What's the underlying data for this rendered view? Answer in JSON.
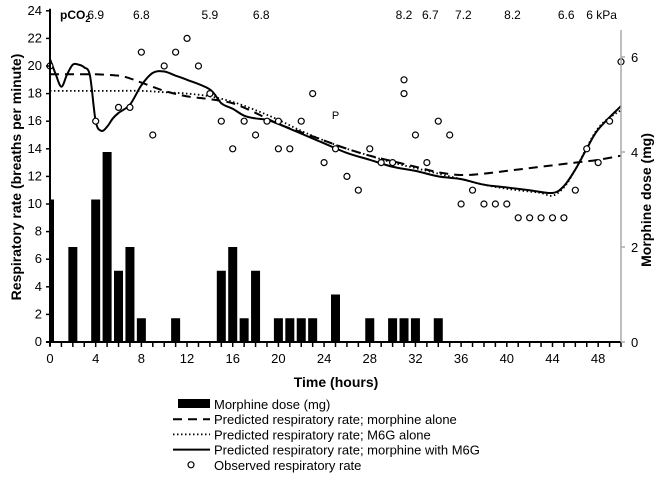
{
  "chart_data": {
    "type": "bar+line+scatter",
    "title": "",
    "xlabel": "Time (hours)",
    "ylabel": "Respiratory rate (breaths per minute)",
    "y2label": "Morphine dose (mg)",
    "xlim": [
      0,
      50
    ],
    "ylim": [
      0,
      24
    ],
    "y2lim": [
      0,
      7
    ],
    "x_ticks": [
      0,
      4,
      8,
      12,
      16,
      20,
      24,
      28,
      32,
      36,
      40,
      44,
      48
    ],
    "y_ticks": [
      0,
      2,
      4,
      6,
      8,
      10,
      12,
      14,
      16,
      18,
      20,
      22,
      24
    ],
    "y2_ticks": [
      0,
      2,
      4,
      6
    ],
    "grid": false,
    "pco2": {
      "prefix": "pCO",
      "prefix_sub": "2",
      "unit": "kPa",
      "values": [
        {
          "x": 4,
          "label": "6.9"
        },
        {
          "x": 8,
          "label": "6.8"
        },
        {
          "x": 14,
          "label": "5.9"
        },
        {
          "x": 18.5,
          "label": "6.8"
        },
        {
          "x": 31,
          "label": "8.2"
        },
        {
          "x": 33.3,
          "label": "6.7"
        },
        {
          "x": 36.2,
          "label": "7.2"
        },
        {
          "x": 40.5,
          "label": "8.2"
        },
        {
          "x": 45.2,
          "label": "6.6"
        },
        {
          "x": 48.3,
          "label": "6"
        }
      ]
    },
    "annotations": [
      {
        "x": 25,
        "y": 4.7,
        "text": "P",
        "axis": "y2"
      }
    ],
    "morphine_dose": {
      "name": "Morphine dose (mg)",
      "axis": "y2",
      "x": [
        0,
        2,
        4,
        5,
        6,
        7,
        8,
        11,
        15,
        16,
        17,
        18,
        20,
        21,
        22,
        23,
        25,
        28,
        30,
        31,
        32,
        34
      ],
      "values": [
        3,
        2,
        3,
        4,
        1.5,
        2,
        0.5,
        0.5,
        1.5,
        2,
        0.5,
        1.5,
        0.5,
        0.5,
        0.5,
        0.5,
        1,
        0.5,
        0.5,
        0.5,
        0.5,
        0.5
      ]
    },
    "series": [
      {
        "name": "Predicted respiratory rate; morphine alone",
        "style": "dashed",
        "x": [
          0,
          1,
          3,
          4,
          6,
          7,
          8,
          10,
          12,
          14,
          16,
          18,
          20,
          22,
          24,
          26,
          28,
          30,
          32,
          34,
          36,
          38,
          40,
          42,
          44,
          46,
          48,
          50
        ],
        "values": [
          19.4,
          19.4,
          19.4,
          19.4,
          19.3,
          19.1,
          18.8,
          18.2,
          17.8,
          17.6,
          17.3,
          16.6,
          15.8,
          15.2,
          14.6,
          14.0,
          13.5,
          13.1,
          12.7,
          12.3,
          12.1,
          12.2,
          12.4,
          12.6,
          12.8,
          13.0,
          13.2,
          13.5
        ]
      },
      {
        "name": "Predicted respiratory rate; M6G alone",
        "style": "dotted",
        "x": [
          0,
          2,
          4,
          6,
          8,
          10,
          12,
          14,
          16,
          18,
          20,
          22,
          24,
          26,
          28,
          30,
          32,
          34,
          36,
          38,
          40,
          42,
          43,
          44,
          45,
          46,
          48,
          50
        ],
        "values": [
          18.2,
          18.2,
          18.2,
          18.2,
          18.2,
          18.1,
          18.0,
          17.8,
          17.4,
          16.8,
          16.1,
          15.3,
          14.6,
          14.0,
          13.5,
          13.0,
          12.6,
          12.2,
          11.8,
          11.4,
          11.1,
          10.9,
          10.8,
          10.6,
          11.2,
          12.5,
          15.5,
          16.8
        ]
      },
      {
        "name": "Predicted respiratory rate; morphine with M6G",
        "style": "solid",
        "x": [
          0,
          0.5,
          1,
          1.5,
          2,
          2.5,
          3,
          3.5,
          4,
          4.5,
          5,
          5.5,
          6,
          7,
          8,
          9,
          10,
          11,
          12,
          14,
          15,
          16,
          17,
          18,
          19,
          20,
          22,
          24,
          26,
          28,
          30,
          32,
          34,
          36,
          38,
          40,
          42,
          44,
          45,
          46,
          47,
          48,
          50
        ],
        "values": [
          20.5,
          19.4,
          18.5,
          19.4,
          20.1,
          20.1,
          19.9,
          19.3,
          16.0,
          15.3,
          15.6,
          16.2,
          16.6,
          17.2,
          18.6,
          19.5,
          19.6,
          19.3,
          19.0,
          18.3,
          17.3,
          16.9,
          16.4,
          16.2,
          16.1,
          15.8,
          15.1,
          14.4,
          13.7,
          13.2,
          12.7,
          12.4,
          12.0,
          11.8,
          11.4,
          11.2,
          11.0,
          10.8,
          11.3,
          12.5,
          14.0,
          15.4,
          17.1
        ]
      }
    ],
    "observed": {
      "name": "Observed respiratory rate",
      "x": [
        0,
        4,
        6,
        7,
        8,
        9,
        10,
        11,
        12,
        13,
        14,
        15,
        16,
        17,
        18,
        19,
        20,
        20,
        21,
        22,
        23,
        24,
        25,
        26,
        27,
        28,
        29,
        30,
        31,
        31,
        32,
        33,
        34,
        35,
        36,
        37,
        38,
        39,
        40,
        41,
        42,
        43,
        44,
        45,
        46,
        47,
        48,
        49
      ],
      "values": [
        20,
        16,
        17,
        17,
        21,
        15,
        20,
        21,
        22,
        20,
        18,
        16,
        14,
        16,
        15,
        16,
        16,
        14,
        14,
        16,
        18,
        13,
        14,
        12,
        11,
        14,
        13,
        13,
        19,
        18,
        15,
        13,
        16,
        15,
        10,
        11,
        10,
        10,
        10,
        9,
        9,
        9,
        9,
        9,
        11,
        14,
        13,
        16
      ],
      "extra_y2_points": [
        {
          "x": 50,
          "value": 5.9
        }
      ]
    },
    "legend": {
      "position": "bottom",
      "entries": [
        {
          "label": "Morphine dose (mg)",
          "symbol": "bar"
        },
        {
          "label": "Predicted respiratory rate; morphine alone",
          "symbol": "dashed"
        },
        {
          "label": "Predicted respiratory rate; M6G alone",
          "symbol": "dotted"
        },
        {
          "label": "Predicted respiratory rate; morphine with M6G",
          "symbol": "solid"
        },
        {
          "label": "Observed respiratory rate",
          "symbol": "circle"
        }
      ]
    }
  }
}
